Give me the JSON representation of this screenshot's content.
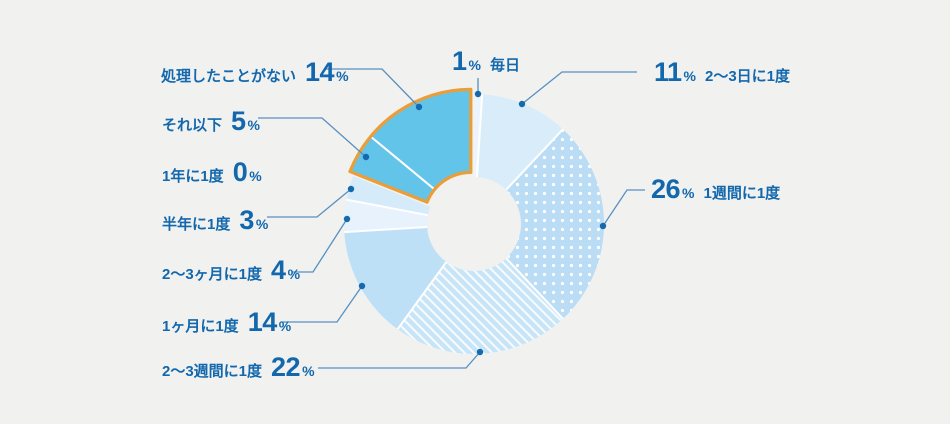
{
  "background_color": "#f1f1f0",
  "text_color": "#1368ad",
  "leader_line_color": "#5790c0",
  "leader_dot_color": "#156aae",
  "highlight_outline_color": "#eb9e37",
  "highlight_fill_color": "#63c4ea",
  "chart_data": {
    "type": "pie",
    "subtype": "donut",
    "title": "",
    "unit": "%",
    "direction": "clockwise",
    "start_angle_deg": 0,
    "legend_position": "none",
    "categories": [
      "毎日",
      "2〜3日に1度",
      "1週間に1度",
      "2〜3週間に1度",
      "1ヶ月に1度",
      "2〜3ヶ月に1度",
      "半年に1度",
      "1年に1度",
      "それ以下",
      "処理したことがない"
    ],
    "values": [
      1,
      11,
      26,
      22,
      14,
      4,
      3,
      0,
      5,
      14
    ],
    "highlighted_categories": [
      "それ以下",
      "処理したことがない"
    ],
    "slices": [
      {
        "label": "毎日",
        "value": 1,
        "color": "#edf5fc",
        "pattern": "none",
        "highlighted": false
      },
      {
        "label": "2〜3日に1度",
        "value": 11,
        "color": "#d9ecf9",
        "pattern": "none",
        "highlighted": false
      },
      {
        "label": "1週間に1度",
        "value": 26,
        "color": "#baddf5",
        "pattern": "dots",
        "highlighted": false
      },
      {
        "label": "2〜3週間に1度",
        "value": 22,
        "color": "#c8e5f7",
        "pattern": "diagonal-stripes",
        "highlighted": false
      },
      {
        "label": "1ヶ月に1度",
        "value": 14,
        "color": "#bee0f7",
        "pattern": "none",
        "highlighted": false
      },
      {
        "label": "2〜3ヶ月に1度",
        "value": 4,
        "color": "#e7f2fc",
        "pattern": "none",
        "highlighted": false
      },
      {
        "label": "半年に1度",
        "value": 3,
        "color": "#d6ebf9",
        "pattern": "none",
        "highlighted": false
      },
      {
        "label": "1年に1度",
        "value": 0,
        "color": "#e7f2fc",
        "pattern": "none",
        "highlighted": false
      },
      {
        "label": "それ以下",
        "value": 5,
        "color": "#63c4ea",
        "pattern": "none",
        "highlighted": true
      },
      {
        "label": "処理したことがない",
        "value": 14,
        "color": "#63c4ea",
        "pattern": "none",
        "highlighted": true
      }
    ]
  },
  "labels": [
    {
      "text": "処理したことがない",
      "value": "14",
      "suffix": "%"
    },
    {
      "text": "それ以下",
      "value": "5",
      "suffix": "%"
    },
    {
      "text": "1年に1度",
      "value": "0",
      "suffix": "%"
    },
    {
      "text": "半年に1度",
      "value": "3",
      "suffix": "%"
    },
    {
      "text": "2〜3ヶ月に1度",
      "value": "4",
      "suffix": "%"
    },
    {
      "text": "1ヶ月に1度",
      "value": "14",
      "suffix": "%"
    },
    {
      "text": "2〜3週間に1度",
      "value": "22",
      "suffix": "%"
    },
    {
      "text": "毎日",
      "value": "1",
      "suffix": "%"
    },
    {
      "text": "2〜3日に1度",
      "value": "11",
      "suffix": "%"
    },
    {
      "text": "1週間に1度",
      "value": "26",
      "suffix": "%"
    }
  ]
}
